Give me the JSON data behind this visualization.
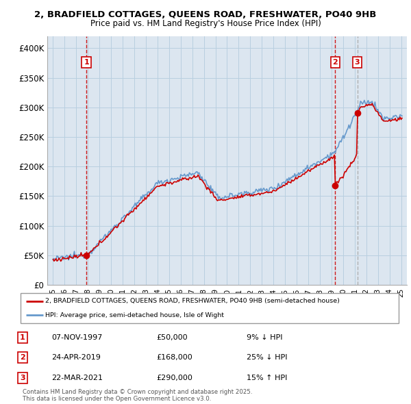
{
  "title_line1": "2, BRADFIELD COTTAGES, QUEENS ROAD, FRESHWATER, PO40 9HB",
  "title_line2": "Price paid vs. HM Land Registry's House Price Index (HPI)",
  "property_label": "2, BRADFIELD COTTAGES, QUEENS ROAD, FRESHWATER, PO40 9HB (semi-detached house)",
  "hpi_label": "HPI: Average price, semi-detached house, Isle of Wight",
  "transactions": [
    {
      "num": 1,
      "date": "07-NOV-1997",
      "price": 50000,
      "pct": "9%",
      "dir": "↓",
      "x_year": 1997.87
    },
    {
      "num": 2,
      "date": "24-APR-2019",
      "price": 168000,
      "pct": "25%",
      "dir": "↓",
      "x_year": 2019.31
    },
    {
      "num": 3,
      "date": "22-MAR-2021",
      "price": 290000,
      "pct": "15%",
      "dir": "↑",
      "x_year": 2021.22
    }
  ],
  "ylabel_ticks": [
    "£0",
    "£50K",
    "£100K",
    "£150K",
    "£200K",
    "£250K",
    "£300K",
    "£350K",
    "£400K"
  ],
  "ytick_vals": [
    0,
    50000,
    100000,
    150000,
    200000,
    250000,
    300000,
    350000,
    400000
  ],
  "ylim": [
    0,
    420000
  ],
  "xlim_start": 1994.5,
  "xlim_end": 2025.5,
  "bg_color": "#dce6f0",
  "grid_color": "#b8cfe0",
  "property_color": "#cc0000",
  "hpi_color": "#6699cc",
  "vline2_color": "#aaaaaa",
  "footnote": "Contains HM Land Registry data © Crown copyright and database right 2025.\nThis data is licensed under the Open Government Licence v3.0."
}
